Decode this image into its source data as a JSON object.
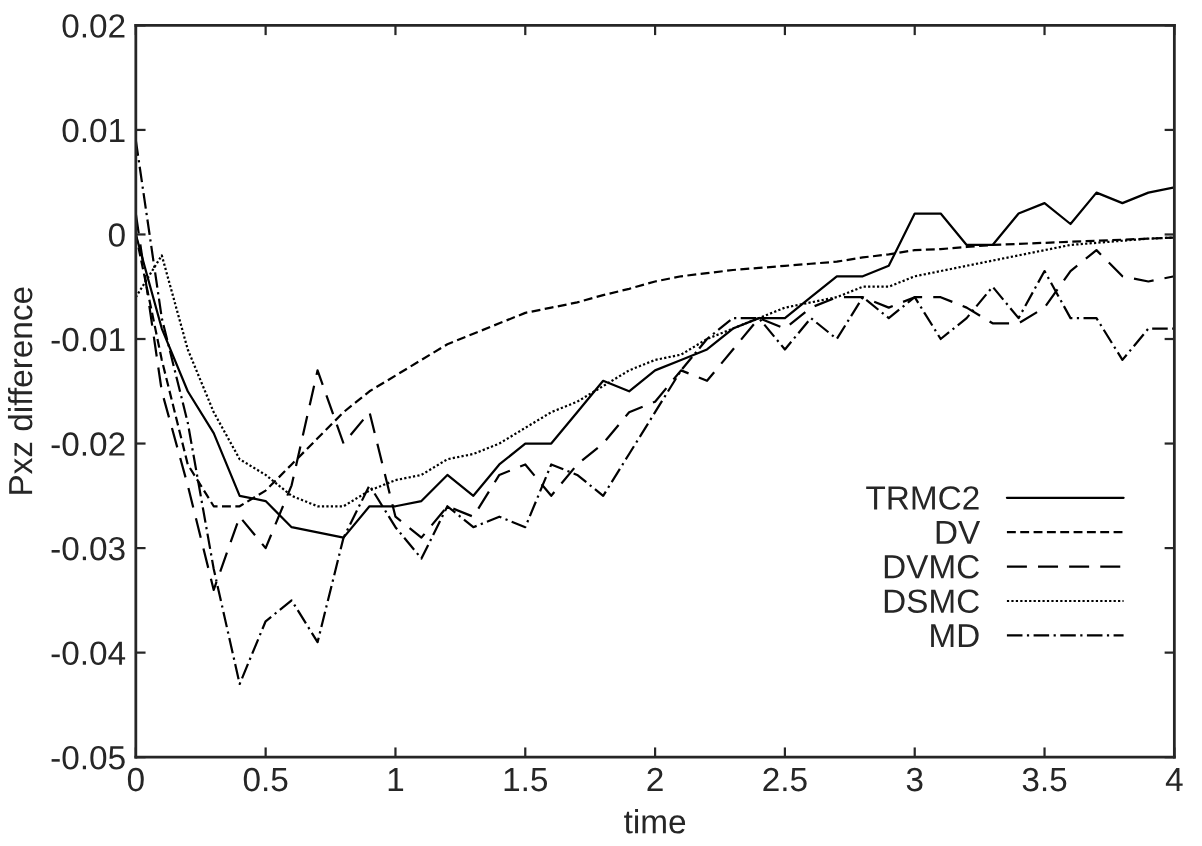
{
  "chart_data": {
    "type": "line",
    "xlabel": "time",
    "ylabel": "Pxz difference",
    "x": [
      0,
      0.1,
      0.2,
      0.3,
      0.4,
      0.5,
      0.6,
      0.7,
      0.8,
      0.9,
      1.0,
      1.1,
      1.2,
      1.3,
      1.4,
      1.5,
      1.6,
      1.7,
      1.8,
      1.9,
      2.0,
      2.1,
      2.2,
      2.3,
      2.4,
      2.5,
      2.6,
      2.7,
      2.8,
      2.9,
      3.0,
      3.1,
      3.2,
      3.3,
      3.4,
      3.5,
      3.6,
      3.7,
      3.8,
      3.9,
      4.0
    ],
    "series": [
      {
        "name": "TRMC2",
        "color": "#000000",
        "line_style": "solid",
        "values": [
          0,
          -0.009,
          -0.015,
          -0.019,
          -0.025,
          -0.0255,
          -0.028,
          -0.0285,
          -0.029,
          -0.026,
          -0.026,
          -0.0255,
          -0.023,
          -0.025,
          -0.022,
          -0.02,
          -0.02,
          -0.017,
          -0.014,
          -0.015,
          -0.013,
          -0.012,
          -0.011,
          -0.009,
          -0.008,
          -0.008,
          -0.006,
          -0.004,
          -0.004,
          -0.003,
          0.002,
          0.002,
          -0.001,
          -0.001,
          0.002,
          0.003,
          0.001,
          0.004,
          0.003,
          0.004,
          0.0045
        ]
      },
      {
        "name": "DV",
        "color": "#000000",
        "line_style": "dashed",
        "values": [
          0,
          -0.012,
          -0.022,
          -0.026,
          -0.026,
          -0.0245,
          -0.022,
          -0.0195,
          -0.017,
          -0.015,
          -0.0135,
          -0.012,
          -0.0105,
          -0.0095,
          -0.0085,
          -0.0075,
          -0.007,
          -0.0065,
          -0.0058,
          -0.0052,
          -0.0045,
          -0.004,
          -0.0037,
          -0.0034,
          -0.0032,
          -0.003,
          -0.0028,
          -0.0026,
          -0.0022,
          -0.0019,
          -0.0015,
          -0.0014,
          -0.0012,
          -0.001,
          -0.0009,
          -0.0008,
          -0.0007,
          -0.0006,
          -0.0005,
          -0.0004,
          -0.0003
        ]
      },
      {
        "name": "DVMC",
        "color": "#000000",
        "line_style": "longdash",
        "values": [
          0.002,
          -0.015,
          -0.024,
          -0.034,
          -0.027,
          -0.03,
          -0.024,
          -0.013,
          -0.02,
          -0.017,
          -0.027,
          -0.029,
          -0.026,
          -0.027,
          -0.023,
          -0.022,
          -0.025,
          -0.022,
          -0.02,
          -0.017,
          -0.016,
          -0.013,
          -0.014,
          -0.011,
          -0.008,
          -0.009,
          -0.007,
          -0.006,
          -0.006,
          -0.007,
          -0.006,
          -0.006,
          -0.007,
          -0.0085,
          -0.0085,
          -0.007,
          -0.0035,
          -0.0015,
          -0.004,
          -0.0045,
          -0.004
        ]
      },
      {
        "name": "DSMC",
        "color": "#000000",
        "line_style": "dotted",
        "values": [
          -0.006,
          -0.002,
          -0.011,
          -0.017,
          -0.0215,
          -0.023,
          -0.025,
          -0.026,
          -0.026,
          -0.0245,
          -0.0235,
          -0.023,
          -0.0215,
          -0.021,
          -0.02,
          -0.0185,
          -0.017,
          -0.016,
          -0.0145,
          -0.013,
          -0.012,
          -0.0115,
          -0.01,
          -0.009,
          -0.008,
          -0.007,
          -0.0065,
          -0.006,
          -0.005,
          -0.005,
          -0.004,
          -0.0035,
          -0.003,
          -0.0025,
          -0.002,
          -0.0015,
          -0.001,
          -0.0008,
          -0.0006,
          -0.0004,
          -0.0003
        ]
      },
      {
        "name": "MD",
        "color": "#000000",
        "line_style": "dashdot",
        "values": [
          0.009,
          -0.008,
          -0.018,
          -0.032,
          -0.043,
          -0.037,
          -0.035,
          -0.039,
          -0.029,
          -0.024,
          -0.028,
          -0.031,
          -0.026,
          -0.028,
          -0.027,
          -0.028,
          -0.022,
          -0.023,
          -0.025,
          -0.021,
          -0.017,
          -0.013,
          -0.01,
          -0.008,
          -0.008,
          -0.011,
          -0.008,
          -0.01,
          -0.006,
          -0.008,
          -0.006,
          -0.01,
          -0.008,
          -0.005,
          -0.008,
          -0.0035,
          -0.008,
          -0.008,
          -0.012,
          -0.009,
          -0.009
        ]
      }
    ],
    "xlim": [
      0,
      4
    ],
    "xticks": [
      0,
      0.5,
      1,
      1.5,
      2,
      2.5,
      3,
      3.5,
      4
    ],
    "ylim": [
      -0.05,
      0.02
    ],
    "yticks": [
      -0.05,
      -0.04,
      -0.03,
      -0.02,
      -0.01,
      0,
      0.01,
      0.02
    ],
    "grid": false,
    "legend": "bottom right"
  }
}
